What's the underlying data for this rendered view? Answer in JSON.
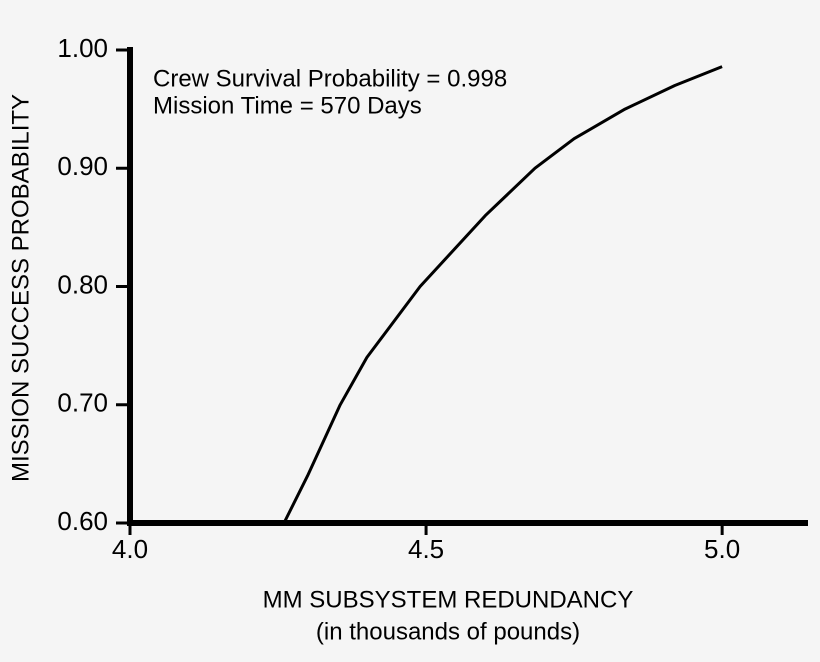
{
  "chart_data": {
    "type": "line",
    "ylabel": "MISSION SUCCESS PROBABILITY",
    "xlabel": "MM SUBSYSTEM REDUNDANCY",
    "xlabel_note": "(in thousands of pounds)",
    "annotations": [
      "Crew Survival Probability = 0.998",
      "Mission Time = 570 Days"
    ],
    "x": [
      4.26,
      4.3,
      4.355,
      4.4,
      4.49,
      4.6,
      4.684,
      4.75,
      4.836,
      4.92,
      5.0
    ],
    "values": [
      0.6,
      0.64,
      0.7,
      0.74,
      0.8,
      0.86,
      0.9,
      0.925,
      0.95,
      0.97,
      0.986
    ],
    "color": "#000000",
    "xlim": [
      4.0,
      5.145
    ],
    "xticks": [
      {
        "value": 4,
        "label": "4.0"
      },
      4.5,
      {
        "value": 5,
        "label": "5.0"
      }
    ],
    "ylim": [
      0.6,
      1.0
    ],
    "yticks": [
      {
        "value": 0.6,
        "label": "0.60"
      },
      {
        "value": 0.7,
        "label": "0.70"
      },
      {
        "value": 0.8,
        "label": "0.80"
      },
      {
        "value": 0.9,
        "label": "0.90"
      },
      {
        "value": 1,
        "label": "1.00"
      }
    ]
  }
}
